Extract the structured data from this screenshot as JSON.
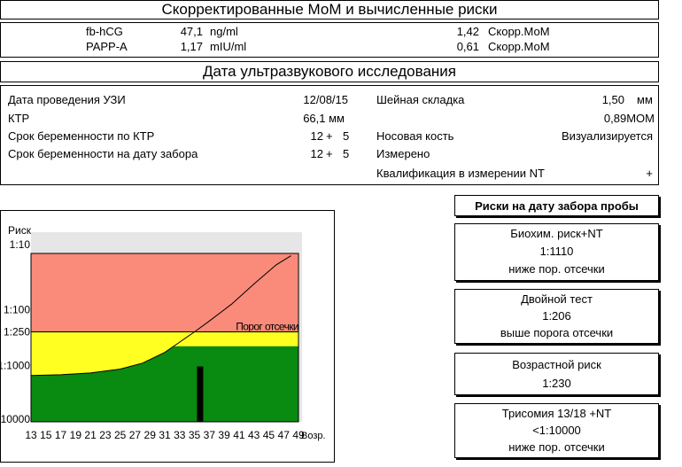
{
  "header": {
    "title": "Скорректированные МоМ и вычисленные риски"
  },
  "markers": [
    {
      "name": "fb-hCG",
      "value": "47,1",
      "unit": "ng/ml",
      "mom": "1,42",
      "mom_label": "Скорр.МоМ"
    },
    {
      "name": "PAPP-A",
      "value": "1,17",
      "unit": "mIU/ml",
      "mom": "0,61",
      "mom_label": "Скорр.МоМ"
    }
  ],
  "ultrasound": {
    "title": "Дата ультразвукового исследования",
    "left": [
      {
        "label": "Дата проведения УЗИ",
        "value": "12/08/15"
      },
      {
        "label": "КТР",
        "value": "66,1 мм"
      },
      {
        "label": "Срок беременности по КТР",
        "weeks": "12",
        "plus": "+",
        "days": "5"
      },
      {
        "label": "Срок беременности на дату забора",
        "weeks": "12",
        "plus": "+",
        "days": "5"
      }
    ],
    "right": [
      {
        "label": "Шейная складка",
        "value": "1,50",
        "unit": "мм"
      },
      {
        "label": "",
        "value": "0,89МОМ"
      },
      {
        "label": "Носовая кость",
        "value": "Визуализируется"
      },
      {
        "label": "Измерено",
        "value": ""
      },
      {
        "label": "Квалификация в измерении NT",
        "value": "+"
      }
    ]
  },
  "risks": {
    "title": "Риски на дату забора пробы",
    "items": [
      {
        "name": "Биохим. риск+NT",
        "value": "1:1110",
        "status": "ниже пор. отсечки"
      },
      {
        "name": "Двойной тест",
        "value": "1:206",
        "status": "выше порога отсечки"
      },
      {
        "name": "Возрастной риск",
        "value": "1:230",
        "status": ""
      },
      {
        "name": "Трисомия 13/18 +NT",
        "value": "<1:10000",
        "status": "ниже пор. отсечки"
      }
    ]
  },
  "chart_data": {
    "type": "area",
    "ylabel": "Риск",
    "xlabel": "Возр.",
    "y_ticks": [
      "1:10",
      "1:100",
      "1:250",
      "1:1000",
      "1:10000"
    ],
    "x_ticks": [
      "13",
      "15",
      "17",
      "19",
      "21",
      "23",
      "25",
      "27",
      "29",
      "31",
      "33",
      "35",
      "37",
      "39",
      "41",
      "43",
      "45",
      "47",
      "49"
    ],
    "cutoff_label": "Порог отсечки",
    "cutoff_risk": "1:250",
    "zones": {
      "high": "#fa8a7a",
      "medium": "#ffff22",
      "low": "#098a10"
    },
    "age_risk_curve": [
      {
        "age": 13,
        "risk": 1500
      },
      {
        "age": 17,
        "risk": 1450
      },
      {
        "age": 21,
        "risk": 1350
      },
      {
        "age": 25,
        "risk": 1150
      },
      {
        "age": 28,
        "risk": 900
      },
      {
        "age": 31,
        "risk": 580
      },
      {
        "age": 33,
        "risk": 380
      },
      {
        "age": 35,
        "risk": 250
      },
      {
        "age": 37,
        "risk": 160
      },
      {
        "age": 40,
        "risk": 80
      },
      {
        "age": 43,
        "risk": 35
      },
      {
        "age": 46,
        "risk": 16
      },
      {
        "age": 48,
        "risk": 11
      }
    ],
    "patient_age": 35.7,
    "patient_risk": 1110
  }
}
